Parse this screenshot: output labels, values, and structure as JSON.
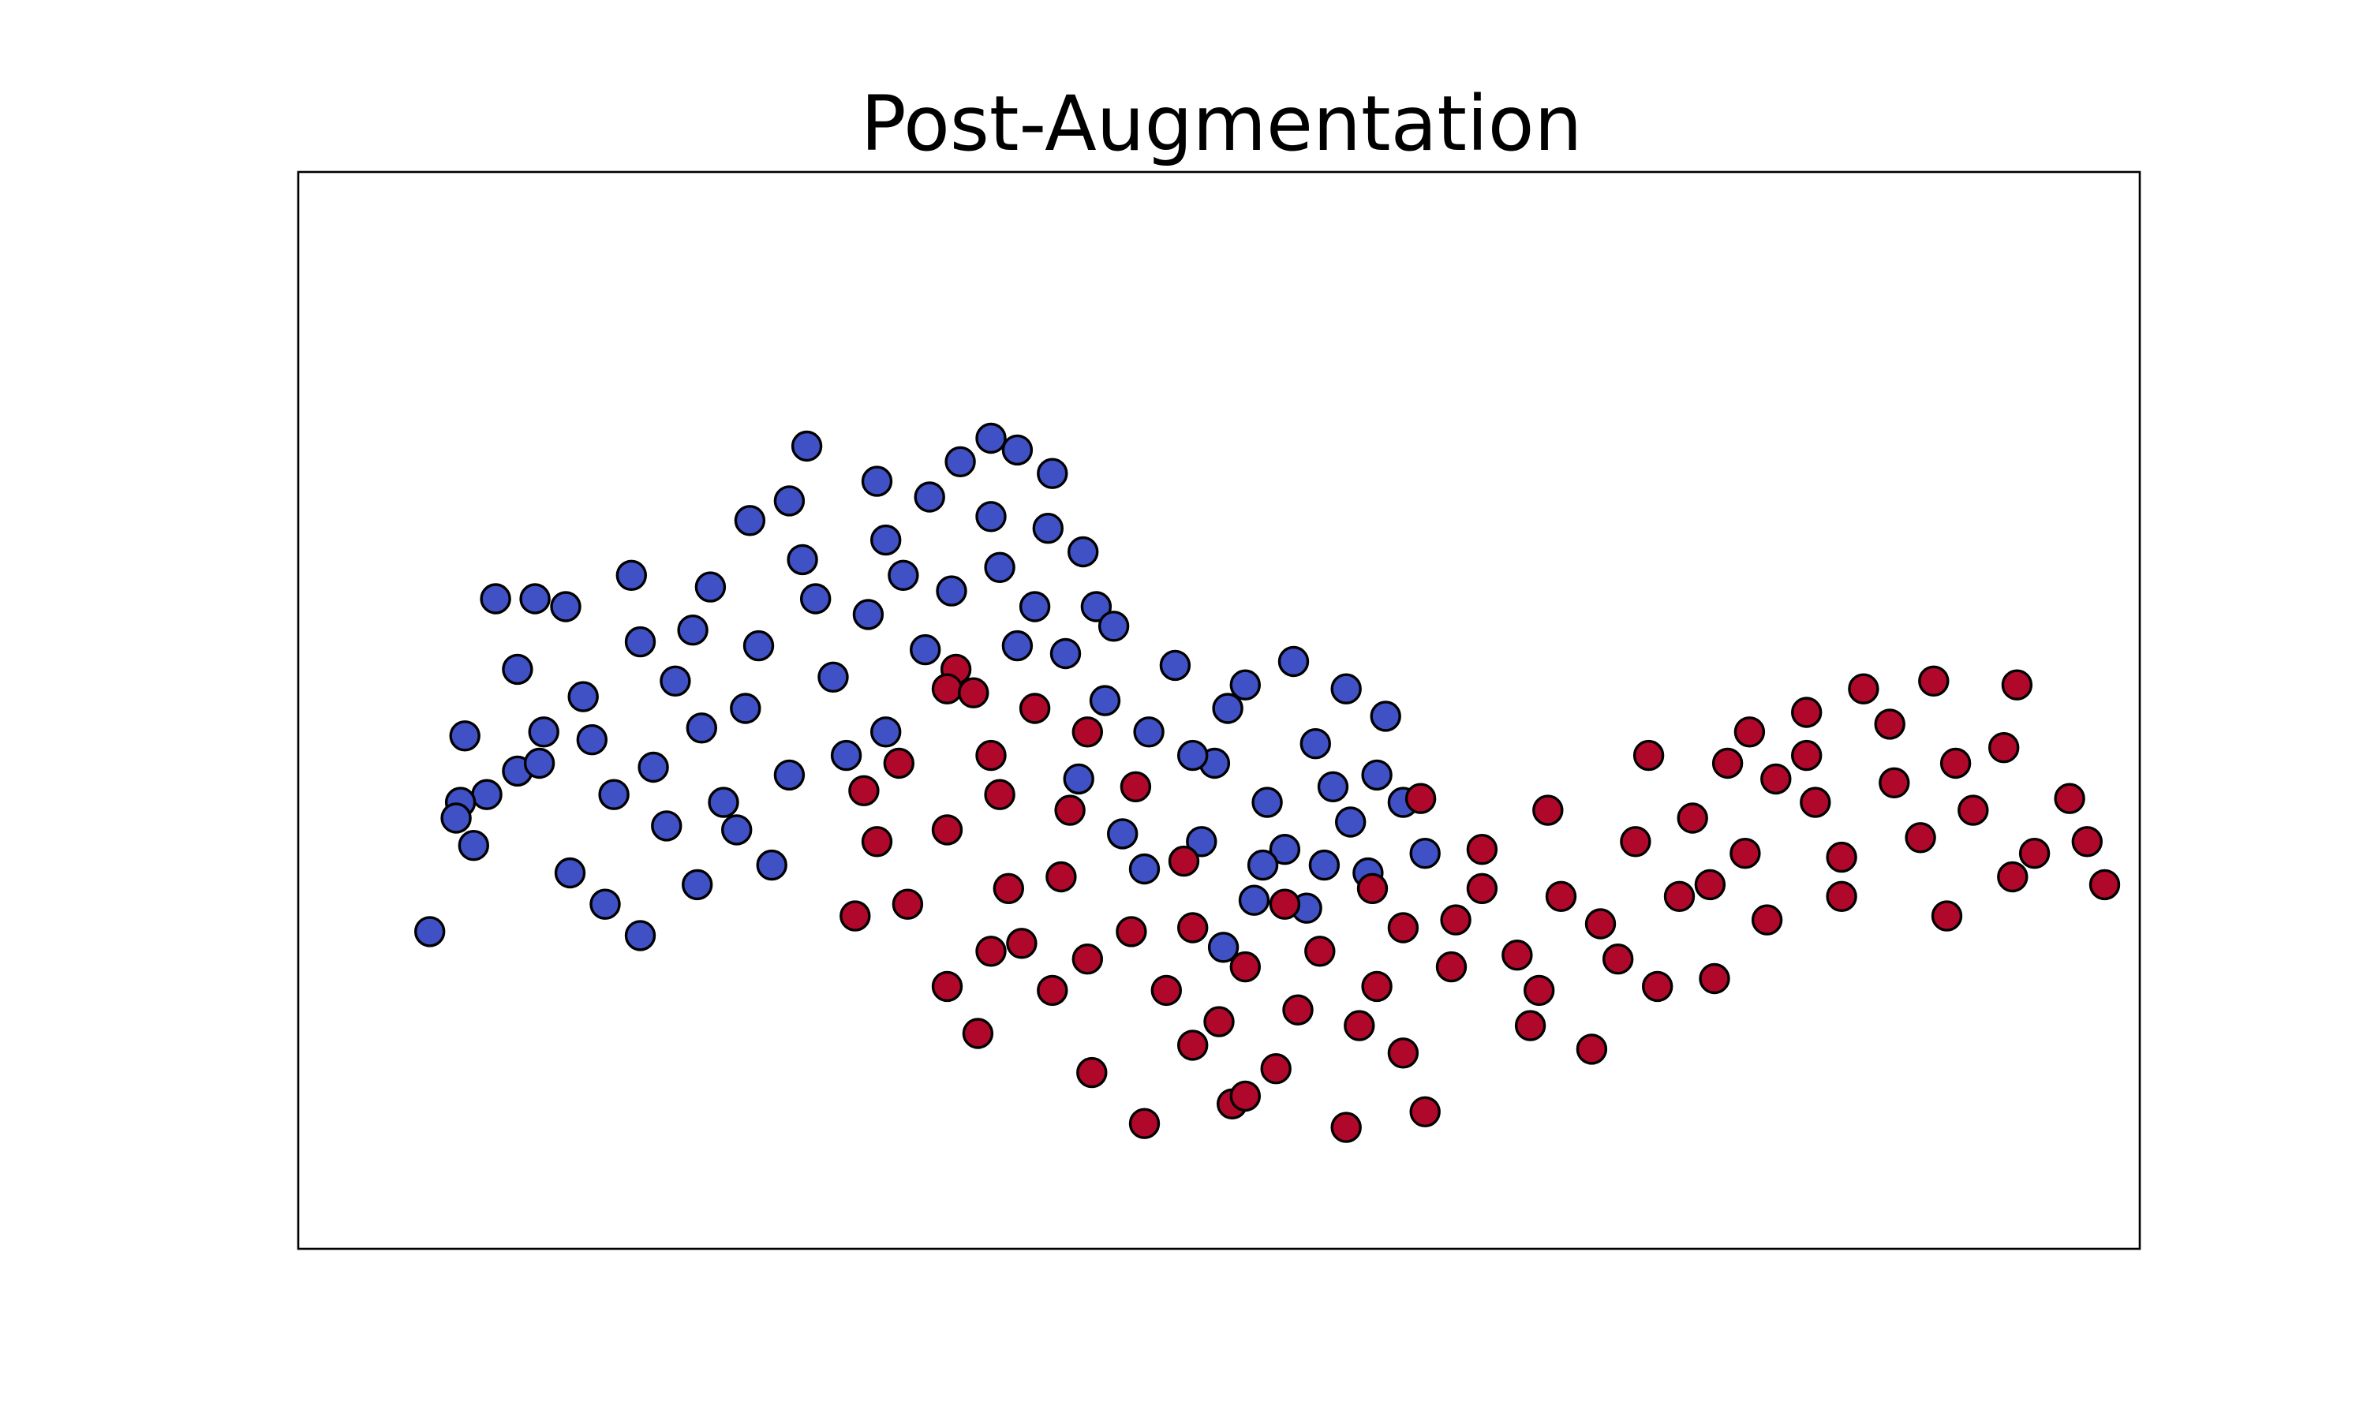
{
  "chart_data": {
    "type": "scatter",
    "title": "Post-Augmentation",
    "xlabel": "",
    "ylabel": "",
    "xlim": [
      -1.6,
      2.6
    ],
    "ylim": [
      -1.1,
      1.65
    ],
    "axis_ticks": "hidden",
    "grid": false,
    "legend": "none",
    "marker": "circle",
    "marker_edge_color": "#000000",
    "series": [
      {
        "color": "#3f51c4",
        "points": [
          [
            -1.15,
            0.56
          ],
          [
            -1.06,
            0.56
          ],
          [
            -0.99,
            0.54
          ],
          [
            -1.04,
            0.22
          ],
          [
            -1.1,
            0.12
          ],
          [
            -1.17,
            0.06
          ],
          [
            -1.23,
            0.04
          ],
          [
            -1.24,
            0.0
          ],
          [
            -1.2,
            -0.07
          ],
          [
            -1.3,
            -0.29
          ],
          [
            -0.82,
            -0.3
          ],
          [
            -0.66,
            0.59
          ],
          [
            -0.57,
            0.76
          ],
          [
            -0.48,
            0.81
          ],
          [
            -0.44,
            0.95
          ],
          [
            -0.16,
            0.82
          ],
          [
            -0.09,
            0.91
          ],
          [
            -0.02,
            0.97
          ],
          [
            0.04,
            0.94
          ],
          [
            0.11,
            0.74
          ],
          [
            0.19,
            0.68
          ],
          [
            0.22,
            0.54
          ],
          [
            0.26,
            0.49
          ],
          [
            0.18,
            0.1
          ],
          [
            0.28,
            -0.04
          ],
          [
            0.33,
            -0.13
          ],
          [
            0.46,
            -0.06
          ],
          [
            0.49,
            0.14
          ],
          [
            0.52,
            0.28
          ],
          [
            0.56,
            0.34
          ],
          [
            0.61,
            0.04
          ],
          [
            0.65,
            -0.08
          ],
          [
            0.58,
            -0.21
          ],
          [
            0.51,
            -0.33
          ],
          [
            0.72,
            0.19
          ],
          [
            0.76,
            0.08
          ],
          [
            0.8,
            -0.01
          ],
          [
            0.84,
            -0.14
          ],
          [
            0.79,
            0.33
          ],
          [
            0.67,
            0.4
          ],
          [
            0.88,
            0.26
          ],
          [
            0.92,
            0.04
          ],
          [
            0.97,
            -0.09
          ],
          [
            -0.69,
            -0.17
          ],
          [
            -0.63,
            0.04
          ],
          [
            -0.98,
            -0.14
          ],
          [
            -0.9,
            -0.22
          ],
          [
            -0.74,
            0.35
          ],
          [
            -0.58,
            0.28
          ],
          [
            -0.38,
            0.36
          ],
          [
            -0.3,
            0.52
          ],
          [
            -0.22,
            0.62
          ],
          [
            -0.11,
            0.58
          ],
          [
            0.0,
            0.64
          ],
          [
            0.08,
            0.54
          ],
          [
            0.15,
            0.42
          ],
          [
            -0.48,
            0.11
          ],
          [
            -0.35,
            0.16
          ],
          [
            -0.26,
            0.22
          ],
          [
            -1.1,
            0.38
          ],
          [
            -0.95,
            0.31
          ],
          [
            -0.82,
            0.45
          ],
          [
            -0.55,
            0.44
          ],
          [
            -0.42,
            0.56
          ],
          [
            -0.26,
            0.71
          ],
          [
            0.04,
            0.44
          ],
          [
            -0.6,
            -0.03
          ],
          [
            -0.52,
            -0.12
          ],
          [
            0.4,
            0.39
          ],
          [
            0.34,
            0.22
          ],
          [
            0.6,
            -0.12
          ],
          [
            0.7,
            -0.23
          ],
          [
            -1.05,
            0.14
          ],
          [
            -0.88,
            0.06
          ],
          [
            -0.76,
            -0.02
          ],
          [
            -0.45,
            0.66
          ],
          [
            -0.17,
            0.43
          ],
          [
            0.24,
            0.3
          ],
          [
            0.44,
            0.16
          ],
          [
            -0.02,
            0.77
          ],
          [
            0.12,
            0.88
          ],
          [
            -0.68,
            0.23
          ],
          [
            -0.7,
            0.48
          ],
          [
            -0.84,
            0.62
          ],
          [
            -0.28,
            0.86
          ],
          [
            -1.22,
            0.21
          ],
          [
            -0.93,
            0.2
          ],
          [
            -0.79,
            0.13
          ],
          [
            0.74,
            -0.12
          ],
          [
            0.86,
            0.11
          ]
        ]
      },
      {
        "color": "#b0082a",
        "points": [
          [
            -0.1,
            0.38
          ],
          [
            -0.12,
            0.33
          ],
          [
            -0.06,
            0.32
          ],
          [
            -0.31,
            0.07
          ],
          [
            -0.21,
            -0.22
          ],
          [
            -0.12,
            -0.43
          ],
          [
            -0.05,
            -0.55
          ],
          [
            0.05,
            -0.32
          ],
          [
            0.12,
            -0.44
          ],
          [
            0.21,
            -0.65
          ],
          [
            0.33,
            -0.78
          ],
          [
            0.44,
            -0.58
          ],
          [
            0.53,
            -0.73
          ],
          [
            0.63,
            -0.64
          ],
          [
            0.82,
            -0.53
          ],
          [
            0.92,
            -0.6
          ],
          [
            0.97,
            -0.75
          ],
          [
            0.79,
            -0.79
          ],
          [
            0.56,
            -0.71
          ],
          [
            1.21,
            -0.53
          ],
          [
            1.35,
            -0.59
          ],
          [
            1.5,
            -0.43
          ],
          [
            1.63,
            -0.41
          ],
          [
            1.75,
            -0.26
          ],
          [
            1.92,
            -0.2
          ],
          [
            2.16,
            -0.25
          ],
          [
            2.31,
            -0.15
          ],
          [
            2.36,
            -0.09
          ],
          [
            2.29,
            0.18
          ],
          [
            2.32,
            0.34
          ],
          [
            2.13,
            0.35
          ],
          [
            1.97,
            0.33
          ],
          [
            2.03,
            0.24
          ],
          [
            1.84,
            0.16
          ],
          [
            1.66,
            0.14
          ],
          [
            1.58,
            0.0
          ],
          [
            1.45,
            -0.06
          ],
          [
            1.28,
            -0.2
          ],
          [
            1.1,
            -0.18
          ],
          [
            0.92,
            -0.28
          ],
          [
            0.73,
            -0.34
          ],
          [
            0.56,
            -0.38
          ],
          [
            0.38,
            -0.44
          ],
          [
            0.2,
            -0.36
          ],
          [
            0.02,
            -0.18
          ],
          [
            -0.12,
            -0.03
          ],
          [
            -0.02,
            0.16
          ],
          [
            0.08,
            0.28
          ],
          [
            0.2,
            0.22
          ],
          [
            0.31,
            0.08
          ],
          [
            0.42,
            -0.11
          ],
          [
            0.65,
            -0.22
          ],
          [
            0.85,
            -0.18
          ],
          [
            1.03,
            -0.38
          ],
          [
            1.18,
            -0.35
          ],
          [
            1.37,
            -0.27
          ],
          [
            1.55,
            -0.2
          ],
          [
            1.7,
            -0.09
          ],
          [
            1.86,
            0.04
          ],
          [
            2.04,
            0.09
          ],
          [
            2.18,
            0.14
          ],
          [
            2.1,
            -0.05
          ],
          [
            1.92,
            -0.1
          ],
          [
            1.77,
            0.1
          ],
          [
            1.62,
            -0.17
          ],
          [
            1.41,
            -0.36
          ],
          [
            1.23,
            -0.44
          ],
          [
            1.04,
            -0.26
          ],
          [
            0.86,
            -0.43
          ],
          [
            0.68,
            -0.49
          ],
          [
            0.5,
            -0.52
          ],
          [
            0.3,
            -0.29
          ],
          [
            0.14,
            -0.15
          ],
          [
            -0.02,
            -0.34
          ],
          [
            -0.28,
            -0.06
          ],
          [
            -0.33,
            -0.25
          ],
          [
            -0.23,
            0.14
          ],
          [
            0.0,
            0.06
          ],
          [
            0.16,
            0.02
          ],
          [
            2.22,
            0.02
          ],
          [
            2.48,
            -0.06
          ],
          [
            2.52,
            -0.17
          ],
          [
            2.44,
            0.05
          ],
          [
            1.84,
            0.27
          ],
          [
            1.71,
            0.22
          ],
          [
            1.48,
            0.16
          ],
          [
            1.25,
            0.02
          ],
          [
            1.1,
            -0.08
          ],
          [
            0.96,
            0.05
          ],
          [
            0.44,
            -0.28
          ]
        ]
      }
    ]
  }
}
